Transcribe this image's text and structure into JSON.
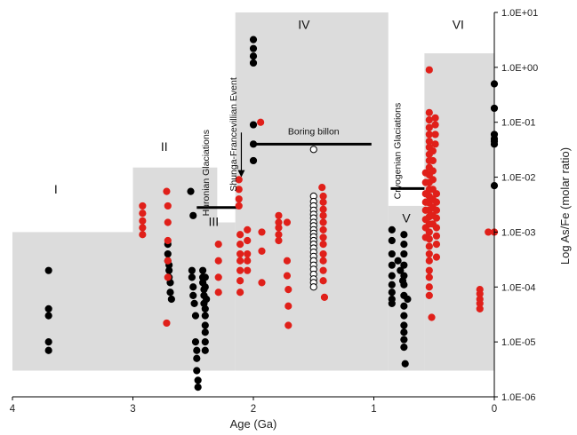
{
  "chart_data": {
    "type": "scatter",
    "title": "",
    "xlabel": "Age (Ga)",
    "ylabel": "Log As/Fe (molar ratio)",
    "xlim": [
      4,
      0
    ],
    "ylim": [
      1e-06,
      10
    ],
    "y_scale": "log",
    "x_ticks": [
      "4",
      "3",
      "2",
      "1",
      "0"
    ],
    "y_ticks": [
      "1.0E-06",
      "1.0E-05",
      "1.0E-04",
      "1.0E-03",
      "1.0E-02",
      "1.0E-01",
      "1.0E+00",
      "1.0E+01"
    ],
    "grid": false,
    "colors": {
      "background": "#dcdcdc",
      "black_series": "#000000",
      "red_series": "#e0201a",
      "open_series": "#ffffff"
    },
    "shaded_regions": [
      {
        "x": [
          4.0,
          3.0
        ],
        "y": [
          3e-06,
          0.001
        ]
      },
      {
        "x": [
          3.0,
          2.3
        ],
        "y": [
          3e-06,
          0.015
        ]
      },
      {
        "x": [
          2.5,
          2.15
        ],
        "y": [
          3e-06,
          0.0015
        ]
      },
      {
        "x": [
          2.15,
          0.88
        ],
        "y": [
          3e-06,
          10
        ]
      },
      {
        "x": [
          0.88,
          0.58
        ],
        "y": [
          3e-06,
          0.003
        ]
      },
      {
        "x": [
          0.58,
          0.0
        ],
        "y": [
          3e-06,
          1.8
        ]
      }
    ],
    "stage_labels": [
      {
        "text": "I",
        "x": 3.64,
        "y": 0.005
      },
      {
        "text": "II",
        "x": 2.74,
        "y": 0.03
      },
      {
        "text": "III",
        "x": 2.33,
        "y": 0.0013
      },
      {
        "text": "IV",
        "x": 1.58,
        "y": 5
      },
      {
        "text": "V",
        "x": 0.73,
        "y": 0.0015
      },
      {
        "text": "VI",
        "x": 0.3,
        "y": 5
      }
    ],
    "annotations": [
      {
        "text": "Huronian Glaciations",
        "x": 2.37,
        "y": 0.012,
        "rotate": -90
      },
      {
        "text": "Shunga-Francevillian Event",
        "x": 2.14,
        "y": 0.06,
        "rotate": -90
      },
      {
        "text": "Boring billon",
        "x": 1.5,
        "y": 0.06,
        "rotate": 0
      },
      {
        "text": "Cryogenian Glaciations",
        "x": 0.78,
        "y": 0.03,
        "rotate": -90
      }
    ],
    "bars": [
      {
        "x": [
          2.47,
          2.13
        ],
        "y": 0.0028
      },
      {
        "x": [
          1.98,
          1.02
        ],
        "y": 0.04
      },
      {
        "x": [
          0.86,
          0.58
        ],
        "y": 0.0062
      }
    ],
    "arrow": {
      "x": 2.1,
      "y_from": 0.065,
      "y_to": 0.01
    },
    "series": [
      {
        "name": "",
        "style": "black",
        "points": [
          [
            3.7,
            0.0002
          ],
          [
            3.7,
            4e-05
          ],
          [
            3.7,
            3e-05
          ],
          [
            3.7,
            1e-05
          ],
          [
            3.7,
            7e-06
          ],
          [
            2.71,
            0.0006
          ],
          [
            2.71,
            0.0004
          ],
          [
            2.71,
            0.0003
          ],
          [
            2.7,
            0.00025
          ],
          [
            2.7,
            0.0002
          ],
          [
            2.7,
            0.00015
          ],
          [
            2.69,
            0.00012
          ],
          [
            2.69,
            8e-05
          ],
          [
            2.68,
            6e-05
          ],
          [
            2.52,
            0.0055
          ],
          [
            2.5,
            0.002
          ],
          [
            2.51,
            0.0002
          ],
          [
            2.51,
            0.00015
          ],
          [
            2.5,
            0.0001
          ],
          [
            2.5,
            7e-05
          ],
          [
            2.49,
            5e-05
          ],
          [
            2.48,
            3e-05
          ],
          [
            2.48,
            1e-05
          ],
          [
            2.47,
            7e-06
          ],
          [
            2.47,
            5e-06
          ],
          [
            2.47,
            3e-06
          ],
          [
            2.46,
            2e-06
          ],
          [
            2.46,
            1.5e-06
          ],
          [
            2.42,
            0.0002
          ],
          [
            2.42,
            0.00015
          ],
          [
            2.42,
            0.00012
          ],
          [
            2.41,
            9e-05
          ],
          [
            2.41,
            7e-05
          ],
          [
            2.41,
            5e-05
          ],
          [
            2.4,
            4e-05
          ],
          [
            2.4,
            3e-05
          ],
          [
            2.4,
            2e-05
          ],
          [
            2.4,
            1.5e-05
          ],
          [
            2.4,
            1e-05
          ],
          [
            2.4,
            7e-06
          ],
          [
            2.4,
            0.00015
          ],
          [
            2.4,
            0.0001
          ],
          [
            2.39,
            6e-05
          ],
          [
            2.0,
            3.2
          ],
          [
            2.0,
            2.2
          ],
          [
            2.0,
            1.6
          ],
          [
            2.0,
            1.2
          ],
          [
            2.0,
            0.09
          ],
          [
            2.0,
            0.04
          ],
          [
            2.0,
            0.02
          ],
          [
            0.85,
            0.0011
          ],
          [
            0.85,
            0.0007
          ],
          [
            0.85,
            0.0004
          ],
          [
            0.85,
            0.00025
          ],
          [
            0.85,
            0.00016
          ],
          [
            0.85,
            0.00011
          ],
          [
            0.85,
            8e-05
          ],
          [
            0.85,
            6e-05
          ],
          [
            0.85,
            5e-05
          ],
          [
            0.8,
            0.0003
          ],
          [
            0.78,
            0.0002
          ],
          [
            0.76,
            0.00013
          ],
          [
            0.75,
            0.0009
          ],
          [
            0.75,
            0.0006
          ],
          [
            0.75,
            0.0004
          ],
          [
            0.75,
            0.00025
          ],
          [
            0.75,
            0.00016
          ],
          [
            0.75,
            0.00011
          ],
          [
            0.75,
            7e-05
          ],
          [
            0.75,
            4.5e-05
          ],
          [
            0.75,
            3e-05
          ],
          [
            0.75,
            2e-05
          ],
          [
            0.75,
            1.5e-05
          ],
          [
            0.75,
            1.1e-05
          ],
          [
            0.75,
            8e-06
          ],
          [
            0.74,
            4e-06
          ],
          [
            0.72,
            6e-05
          ],
          [
            0.0,
            0.5
          ],
          [
            0.0,
            0.18
          ],
          [
            0.0,
            0.06
          ],
          [
            0.0,
            0.05
          ],
          [
            0.0,
            0.045
          ],
          [
            0.0,
            0.04
          ],
          [
            0.0,
            0.007
          ]
        ]
      },
      {
        "name": "",
        "style": "red",
        "points": [
          [
            2.92,
            0.003
          ],
          [
            2.92,
            0.0022
          ],
          [
            2.92,
            0.0016
          ],
          [
            2.92,
            0.0012
          ],
          [
            2.92,
            0.0009
          ],
          [
            2.72,
            0.0055
          ],
          [
            2.71,
            0.003
          ],
          [
            2.71,
            0.0015
          ],
          [
            2.71,
            0.0007
          ],
          [
            2.71,
            0.0003
          ],
          [
            2.71,
            0.00015
          ],
          [
            2.72,
            2.2e-05
          ],
          [
            2.29,
            0.0006
          ],
          [
            2.29,
            0.0003
          ],
          [
            2.29,
            0.00015
          ],
          [
            2.29,
            8e-05
          ],
          [
            2.12,
            0.009
          ],
          [
            2.12,
            0.006
          ],
          [
            2.12,
            0.004
          ],
          [
            2.12,
            0.003
          ],
          [
            2.11,
            0.0009
          ],
          [
            2.11,
            0.0006
          ],
          [
            2.11,
            0.0004
          ],
          [
            2.11,
            0.0003
          ],
          [
            2.11,
            0.0002
          ],
          [
            2.11,
            0.00013
          ],
          [
            2.11,
            8e-05
          ],
          [
            2.05,
            0.0011
          ],
          [
            2.05,
            0.0007
          ],
          [
            2.05,
            0.0004
          ],
          [
            2.05,
            0.0003
          ],
          [
            2.05,
            0.0002
          ],
          [
            1.94,
            0.1
          ],
          [
            1.93,
            0.001
          ],
          [
            1.93,
            0.00045
          ],
          [
            1.93,
            0.00012
          ],
          [
            1.79,
            0.002
          ],
          [
            1.79,
            0.0015
          ],
          [
            1.79,
            0.0012
          ],
          [
            1.79,
            0.0009
          ],
          [
            1.79,
            0.0007
          ],
          [
            1.72,
            0.0015
          ],
          [
            1.72,
            0.0003
          ],
          [
            1.72,
            0.00016
          ],
          [
            1.71,
            9e-05
          ],
          [
            1.71,
            4.5e-05
          ],
          [
            1.71,
            2e-05
          ],
          [
            1.43,
            0.0065
          ],
          [
            1.42,
            0.0045
          ],
          [
            1.42,
            0.0035
          ],
          [
            1.42,
            0.0026
          ],
          [
            1.42,
            0.002
          ],
          [
            1.42,
            0.0015
          ],
          [
            1.42,
            0.0011
          ],
          [
            1.42,
            0.0008
          ],
          [
            1.42,
            0.0006
          ],
          [
            1.42,
            0.0004
          ],
          [
            1.42,
            0.0003
          ],
          [
            1.42,
            0.0002
          ],
          [
            1.42,
            0.00013
          ],
          [
            1.41,
            6.5e-05
          ],
          [
            0.54,
            0.9
          ],
          [
            0.54,
            0.15
          ],
          [
            0.54,
            0.11
          ],
          [
            0.54,
            0.08
          ],
          [
            0.54,
            0.06
          ],
          [
            0.54,
            0.045
          ],
          [
            0.54,
            0.035
          ],
          [
            0.54,
            0.026
          ],
          [
            0.54,
            0.02
          ],
          [
            0.54,
            0.015
          ],
          [
            0.54,
            0.011
          ],
          [
            0.54,
            0.008
          ],
          [
            0.54,
            0.006
          ],
          [
            0.54,
            0.0045
          ],
          [
            0.54,
            0.0034
          ],
          [
            0.54,
            0.0025
          ],
          [
            0.54,
            0.0019
          ],
          [
            0.54,
            0.0014
          ],
          [
            0.54,
            0.001
          ],
          [
            0.54,
            0.00075
          ],
          [
            0.54,
            0.00055
          ],
          [
            0.54,
            0.0004
          ],
          [
            0.54,
            0.0003
          ],
          [
            0.54,
            0.0002
          ],
          [
            0.54,
            0.00015
          ],
          [
            0.54,
            0.0001
          ],
          [
            0.54,
            7e-05
          ],
          [
            0.52,
            2.8e-05
          ],
          [
            0.57,
            0.012
          ],
          [
            0.57,
            0.008
          ],
          [
            0.57,
            0.005
          ],
          [
            0.57,
            0.0035
          ],
          [
            0.57,
            0.0025
          ],
          [
            0.57,
            0.0017
          ],
          [
            0.57,
            0.0012
          ],
          [
            0.57,
            0.0008
          ],
          [
            0.51,
            0.03
          ],
          [
            0.51,
            0.02
          ],
          [
            0.51,
            0.013
          ],
          [
            0.51,
            0.009
          ],
          [
            0.51,
            0.006
          ],
          [
            0.51,
            0.004
          ],
          [
            0.51,
            0.0028
          ],
          [
            0.51,
            0.002
          ],
          [
            0.51,
            0.0014
          ],
          [
            0.49,
            0.12
          ],
          [
            0.49,
            0.09
          ],
          [
            0.49,
            0.06
          ],
          [
            0.49,
            0.04
          ],
          [
            0.48,
            0.005
          ],
          [
            0.48,
            0.0035
          ],
          [
            0.48,
            0.0025
          ],
          [
            0.48,
            0.0018
          ],
          [
            0.48,
            0.0012
          ],
          [
            0.48,
            0.00085
          ],
          [
            0.48,
            0.0006
          ],
          [
            0.48,
            0.00035
          ],
          [
            0.12,
            9e-05
          ],
          [
            0.12,
            7.5e-05
          ],
          [
            0.12,
            6e-05
          ],
          [
            0.12,
            5e-05
          ],
          [
            0.12,
            4e-05
          ],
          [
            0.05,
            0.001
          ],
          [
            0.0,
            0.001
          ]
        ]
      },
      {
        "name": "",
        "style": "open",
        "points": [
          [
            1.5,
            0.032
          ],
          [
            1.5,
            0.0045
          ],
          [
            1.5,
            0.0036
          ],
          [
            1.5,
            0.003
          ],
          [
            1.5,
            0.0025
          ],
          [
            1.5,
            0.0021
          ],
          [
            1.5,
            0.0018
          ],
          [
            1.5,
            0.0015
          ],
          [
            1.5,
            0.0013
          ],
          [
            1.5,
            0.0011
          ],
          [
            1.5,
            0.00095
          ],
          [
            1.5,
            0.00082
          ],
          [
            1.5,
            0.0007
          ],
          [
            1.5,
            0.0006
          ],
          [
            1.5,
            0.00051
          ],
          [
            1.5,
            0.00043
          ],
          [
            1.5,
            0.00036
          ],
          [
            1.5,
            0.0003
          ],
          [
            1.5,
            0.00025
          ],
          [
            1.5,
            0.00021
          ],
          [
            1.5,
            0.00017
          ],
          [
            1.5,
            0.00014
          ],
          [
            1.5,
            0.00012
          ],
          [
            1.5,
            0.0001
          ]
        ]
      }
    ]
  }
}
